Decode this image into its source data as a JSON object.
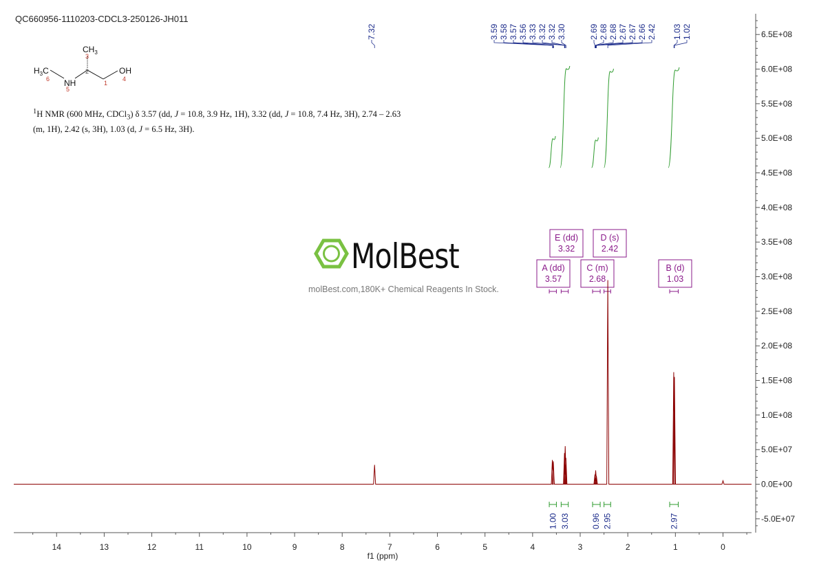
{
  "header": {
    "title": "QC660956-1110203-CDCL3-250126-JH011",
    "nmr_summary": {
      "nucleus_sup": "1",
      "p1": "H NMR (600 MHz, CDCl",
      "sub": "3",
      "p2": ") δ 3.57 (dd, ",
      "j1": "J",
      "p3": " = 10.8, 3.9 Hz, 1H), 3.32 (dd, ",
      "j2": "J",
      "p4": " = 10.8, 7.4 Hz, 3H), 2.74 – 2.63 (m, 1H), 2.42 (s, 3H), 1.03 (d, ",
      "j3": "J",
      "p5": " = 6.5 Hz, 3H)."
    }
  },
  "structure": {
    "labels": {
      "h3c": "H3C",
      "nh": "NH",
      "oh": "OH",
      "ch3": "CH3"
    },
    "atom_numbers": [
      "1",
      "2",
      "3",
      "4",
      "5",
      "6"
    ]
  },
  "watermark": {
    "name": "MolBest",
    "tagline": "molBest.com,180K+ Chemical Reagents In Stock."
  },
  "colors": {
    "spectrum": "#8b0000",
    "peak_labels": "#1a2a8a",
    "integral": "#2e9b2e",
    "multiplet": "#8a1a8a",
    "logo_green": "#7ac142"
  },
  "chart_data": {
    "type": "line",
    "xlabel": "f1 (ppm)",
    "xlim": [
      14.9,
      -0.6
    ],
    "ylim": [
      -70000000,
      680000000
    ],
    "x_ticks": [
      14,
      13,
      12,
      11,
      10,
      9,
      8,
      7,
      6,
      5,
      4,
      3,
      2,
      1,
      0
    ],
    "y_ticks": [
      {
        "v": 650000000,
        "label": "6.5E+08"
      },
      {
        "v": 600000000,
        "label": "6.0E+08"
      },
      {
        "v": 550000000,
        "label": "5.5E+08"
      },
      {
        "v": 500000000,
        "label": "5.0E+08"
      },
      {
        "v": 450000000,
        "label": "4.5E+08"
      },
      {
        "v": 400000000,
        "label": "4.0E+08"
      },
      {
        "v": 350000000,
        "label": "3.5E+08"
      },
      {
        "v": 300000000,
        "label": "3.0E+08"
      },
      {
        "v": 250000000,
        "label": "2.5E+08"
      },
      {
        "v": 200000000,
        "label": "2.0E+08"
      },
      {
        "v": 150000000,
        "label": "1.5E+08"
      },
      {
        "v": 100000000,
        "label": "1.0E+08"
      },
      {
        "v": 50000000,
        "label": "5.0E+07"
      },
      {
        "v": 0,
        "label": "0.0E+00"
      },
      {
        "v": -50000000,
        "label": "-5.0E+07"
      }
    ],
    "peaks": [
      {
        "x": 7.32,
        "y": 28000000
      },
      {
        "x": 3.585,
        "y": 35000000
      },
      {
        "x": 3.565,
        "y": 33000000
      },
      {
        "x": 3.33,
        "y": 45000000
      },
      {
        "x": 3.315,
        "y": 55000000
      },
      {
        "x": 3.3,
        "y": 38000000
      },
      {
        "x": 2.69,
        "y": 14000000
      },
      {
        "x": 2.675,
        "y": 20000000
      },
      {
        "x": 2.66,
        "y": 12000000
      },
      {
        "x": 2.42,
        "y": 295000000
      },
      {
        "x": 1.035,
        "y": 162000000
      },
      {
        "x": 1.02,
        "y": 155000000
      },
      {
        "x": 0.0,
        "y": 5000000
      }
    ],
    "peak_labels": [
      "7.32",
      "3.59",
      "3.58",
      "3.57",
      "3.56",
      "3.33",
      "3.32",
      "3.32",
      "3.30",
      "2.69",
      "2.68",
      "2.68",
      "2.67",
      "2.67",
      "2.66",
      "2.42",
      "1.03",
      "1.02"
    ],
    "multiplets": [
      {
        "letter": "E",
        "mult": "dd",
        "shift": "3.32",
        "range": [
          3.4,
          3.25
        ]
      },
      {
        "letter": "D",
        "mult": "s",
        "shift": "2.42",
        "range": [
          2.5,
          2.36
        ]
      },
      {
        "letter": "A",
        "mult": "dd",
        "shift": "3.57",
        "range": [
          3.65,
          3.5
        ]
      },
      {
        "letter": "C",
        "mult": "m",
        "shift": "2.68",
        "range": [
          2.74,
          2.58
        ]
      },
      {
        "letter": "B",
        "mult": "d",
        "shift": "1.03",
        "range": [
          1.12,
          0.94
        ]
      }
    ],
    "integrals": [
      {
        "value": "1.00",
        "range": [
          3.65,
          3.5
        ],
        "center": 3.575
      },
      {
        "value": "3.03",
        "range": [
          3.4,
          3.25
        ],
        "center": 3.32
      },
      {
        "value": "0.96",
        "range": [
          2.74,
          2.58
        ],
        "center": 2.67
      },
      {
        "value": "2.95",
        "range": [
          2.5,
          2.36
        ],
        "center": 2.43
      },
      {
        "value": "2.97",
        "range": [
          1.12,
          0.94
        ],
        "center": 1.03
      }
    ]
  }
}
